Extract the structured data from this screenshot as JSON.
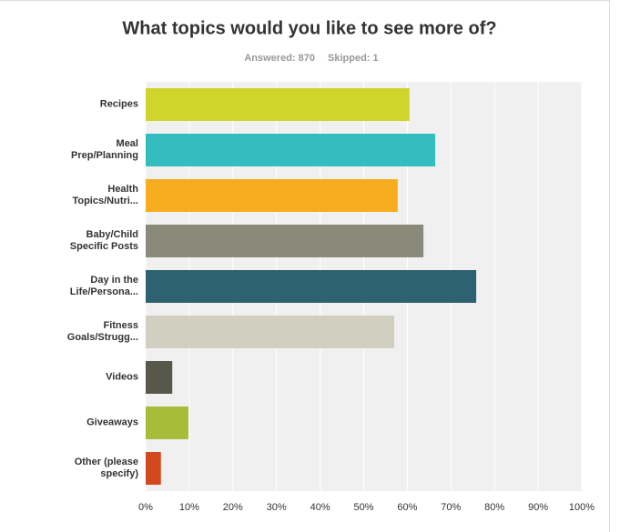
{
  "chart_data": {
    "type": "bar",
    "orientation": "horizontal",
    "title": "What topics would you like to see more of?",
    "answered": "Answered: 870",
    "skipped": "Skipped: 1",
    "categories": [
      "Recipes",
      "Meal\nPrep/Planning",
      "Health\nTopics/Nutri...",
      "Baby/Child\nSpecific Posts",
      "Day in the\nLife/Persona...",
      "Fitness\nGoals/Strugg...",
      "Videos",
      "Giveaways",
      "Other (please\nspecify)"
    ],
    "values": [
      60.5,
      66.4,
      57.8,
      63.7,
      75.8,
      57,
      6.1,
      9.8,
      3.5
    ],
    "colors": [
      "#cfd52a",
      "#34bdbf",
      "#f8ac1f",
      "#8a8a7a",
      "#2e6270",
      "#d0cfc0",
      "#58584a",
      "#a7bd3a",
      "#d2491e"
    ],
    "xlim": [
      0,
      100
    ],
    "xticks": [
      {
        "value": 0,
        "label": "0%"
      },
      {
        "value": 10,
        "label": "10%"
      },
      {
        "value": 20,
        "label": "20%"
      },
      {
        "value": 30,
        "label": "30%"
      },
      {
        "value": 40,
        "label": "40%"
      },
      {
        "value": 50,
        "label": "50%"
      },
      {
        "value": 60,
        "label": "60%"
      },
      {
        "value": 70,
        "label": "70%"
      },
      {
        "value": 80,
        "label": "80%"
      },
      {
        "value": 90,
        "label": "90%"
      },
      {
        "value": 100,
        "label": "100%"
      }
    ],
    "grid": true
  }
}
